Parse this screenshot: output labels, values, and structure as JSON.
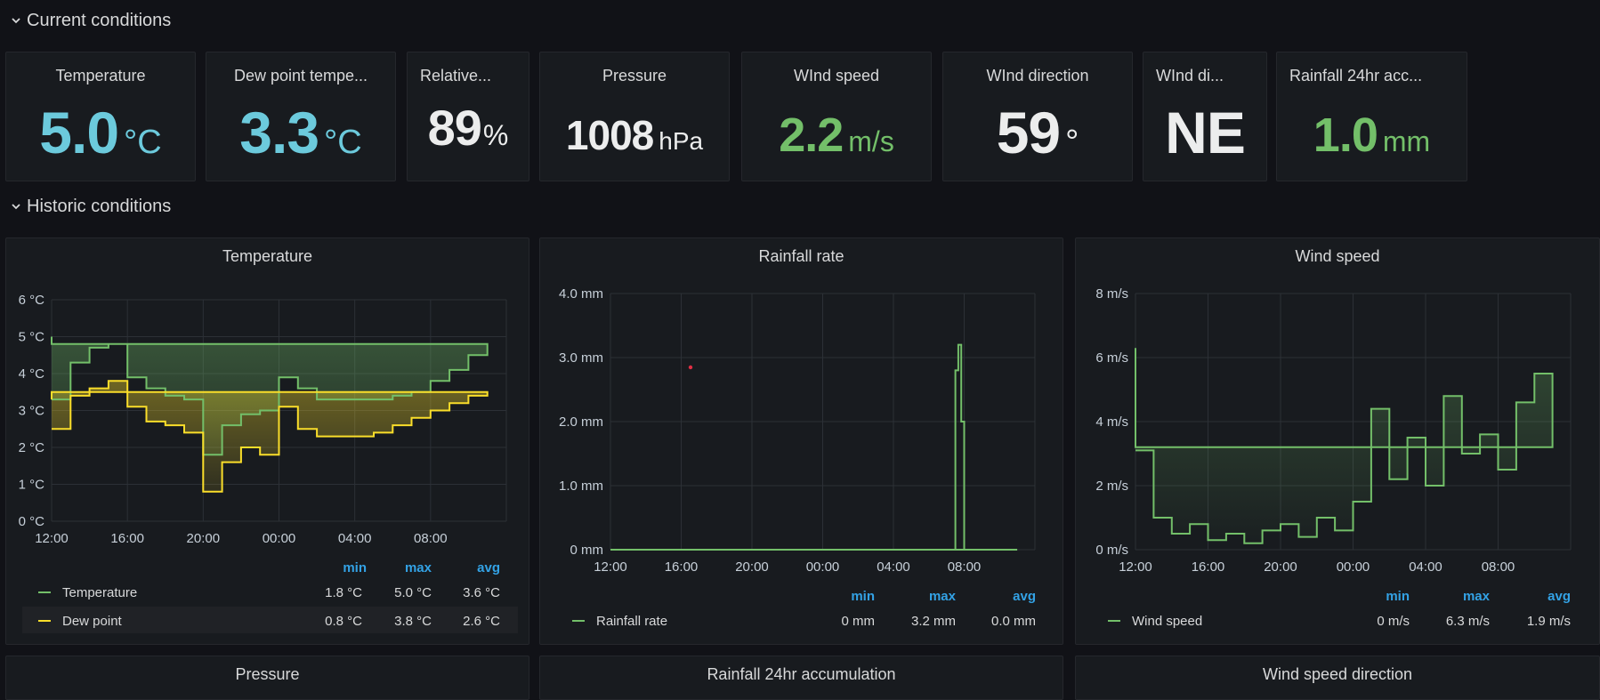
{
  "rows": {
    "current": "Current conditions",
    "historic": "Historic conditions"
  },
  "stats": [
    {
      "title": "Temperature",
      "value": "5.0",
      "unit": "°C",
      "color": "#6ccadc"
    },
    {
      "title": "Dew point tempe...",
      "value": "3.3",
      "unit": "°C",
      "color": "#6ccadc"
    },
    {
      "title": "Relative...",
      "value": "89",
      "unit": "%",
      "color": "#eceded"
    },
    {
      "title": "Pressure",
      "value": "1008",
      "unit": "hPa",
      "color": "#eceded"
    },
    {
      "title": "WInd speed",
      "value": "2.2",
      "unit": "m/s",
      "color": "#73bf69"
    },
    {
      "title": "WInd direction",
      "value": "59",
      "unit": "°",
      "color": "#eceded"
    },
    {
      "title": "WInd di...",
      "value": "NE",
      "unit": "",
      "color": "#eceded"
    },
    {
      "title": "Rainfall 24hr acc...",
      "value": "1.0",
      "unit": "mm",
      "color": "#73bf69"
    }
  ],
  "graphs": {
    "temperature": {
      "title": "Temperature",
      "legend_headers": [
        "min",
        "max",
        "avg"
      ],
      "legend": [
        {
          "name": "Temperature",
          "color": "#73bf69",
          "min": "1.8 °C",
          "max": "5.0 °C",
          "avg": "3.6 °C"
        },
        {
          "name": "Dew point",
          "color": "#fade2a",
          "min": "0.8 °C",
          "max": "3.8 °C",
          "avg": "2.6 °C"
        }
      ]
    },
    "rainfall": {
      "title": "Rainfall rate",
      "legend_headers": [
        "min",
        "max",
        "avg"
      ],
      "legend": [
        {
          "name": "Rainfall rate",
          "color": "#73bf69",
          "min": "0 mm",
          "max": "3.2 mm",
          "avg": "0.0 mm"
        }
      ]
    },
    "wind": {
      "title": "Wind speed",
      "legend_headers": [
        "min",
        "max",
        "avg"
      ],
      "legend": [
        {
          "name": "Wind speed",
          "color": "#73bf69",
          "min": "0 m/s",
          "max": "6.3 m/s",
          "avg": "1.9 m/s"
        }
      ]
    }
  },
  "bottom_panels": [
    "Pressure",
    "Rainfall 24hr accumulation",
    "Wind speed direction"
  ],
  "chart_data": [
    {
      "type": "area",
      "title": "Temperature",
      "x": [
        "12:00",
        "13:00",
        "14:00",
        "15:00",
        "16:00",
        "17:00",
        "18:00",
        "19:00",
        "20:00",
        "21:00",
        "22:00",
        "23:00",
        "00:00",
        "01:00",
        "02:00",
        "03:00",
        "04:00",
        "05:00",
        "06:00",
        "07:00",
        "08:00",
        "09:00",
        "10:00",
        "11:00",
        "12:00"
      ],
      "xticks": [
        "12:00",
        "16:00",
        "20:00",
        "00:00",
        "04:00",
        "08:00"
      ],
      "ylim": [
        0,
        6
      ],
      "yticks": [
        "0 °C",
        "1 °C",
        "2 °C",
        "3 °C",
        "4 °C",
        "5 °C",
        "6 °C"
      ],
      "series": [
        {
          "name": "Temperature",
          "color": "#73bf69",
          "values": [
            3.3,
            4.3,
            4.7,
            4.8,
            3.9,
            3.6,
            3.4,
            3.3,
            1.8,
            2.6,
            2.9,
            3.0,
            3.9,
            3.6,
            3.3,
            3.3,
            3.3,
            3.3,
            3.4,
            3.5,
            3.8,
            4.1,
            4.5,
            4.8,
            5.0
          ]
        },
        {
          "name": "Dew point",
          "color": "#fade2a",
          "values": [
            2.5,
            3.4,
            3.6,
            3.8,
            3.1,
            2.7,
            2.6,
            2.4,
            0.8,
            1.6,
            2.0,
            1.8,
            3.1,
            2.5,
            2.3,
            2.3,
            2.3,
            2.4,
            2.6,
            2.8,
            3.0,
            3.2,
            3.4,
            3.5,
            3.3
          ]
        }
      ]
    },
    {
      "type": "line",
      "title": "Rainfall rate",
      "x": [
        "12:00",
        "13:00",
        "14:00",
        "15:00",
        "16:00",
        "17:00",
        "18:00",
        "19:00",
        "20:00",
        "21:00",
        "22:00",
        "23:00",
        "00:00",
        "01:00",
        "02:00",
        "03:00",
        "04:00",
        "05:00",
        "06:00",
        "07:00",
        "07:30",
        "07:40",
        "07:50",
        "08:00",
        "09:00",
        "10:00",
        "11:00",
        "12:00"
      ],
      "xticks": [
        "12:00",
        "16:00",
        "20:00",
        "00:00",
        "04:00",
        "08:00"
      ],
      "ylim": [
        0,
        4
      ],
      "yticks": [
        "0 mm",
        "1.0 mm",
        "2.0 mm",
        "3.0 mm",
        "4.0 mm"
      ],
      "series": [
        {
          "name": "Rainfall rate",
          "color": "#73bf69",
          "values": [
            0,
            0,
            0,
            0,
            0,
            0,
            0,
            0,
            0,
            0,
            0,
            0,
            0,
            0,
            0,
            0,
            0,
            0,
            0,
            0,
            2.8,
            3.2,
            2.0,
            0,
            0,
            0,
            0,
            0
          ]
        }
      ]
    },
    {
      "type": "line",
      "title": "Wind speed",
      "x": [
        "12:00",
        "13:00",
        "14:00",
        "15:00",
        "16:00",
        "17:00",
        "18:00",
        "19:00",
        "20:00",
        "21:00",
        "22:00",
        "23:00",
        "00:00",
        "01:00",
        "02:00",
        "03:00",
        "04:00",
        "05:00",
        "06:00",
        "07:00",
        "08:00",
        "09:00",
        "10:00",
        "11:00",
        "12:00"
      ],
      "xticks": [
        "12:00",
        "16:00",
        "20:00",
        "00:00",
        "04:00",
        "08:00"
      ],
      "ylim": [
        0,
        8
      ],
      "yticks": [
        "0 m/s",
        "2 m/s",
        "4 m/s",
        "6 m/s",
        "8 m/s"
      ],
      "series": [
        {
          "name": "Wind speed",
          "color": "#73bf69",
          "values": [
            3.1,
            1.0,
            0.5,
            0.8,
            0.3,
            0.5,
            0.2,
            0.6,
            0.8,
            0.4,
            1.0,
            0.6,
            1.5,
            4.4,
            2.2,
            3.5,
            2.0,
            4.8,
            3.0,
            3.6,
            2.5,
            4.6,
            5.5,
            3.2,
            6.3
          ]
        }
      ]
    }
  ]
}
